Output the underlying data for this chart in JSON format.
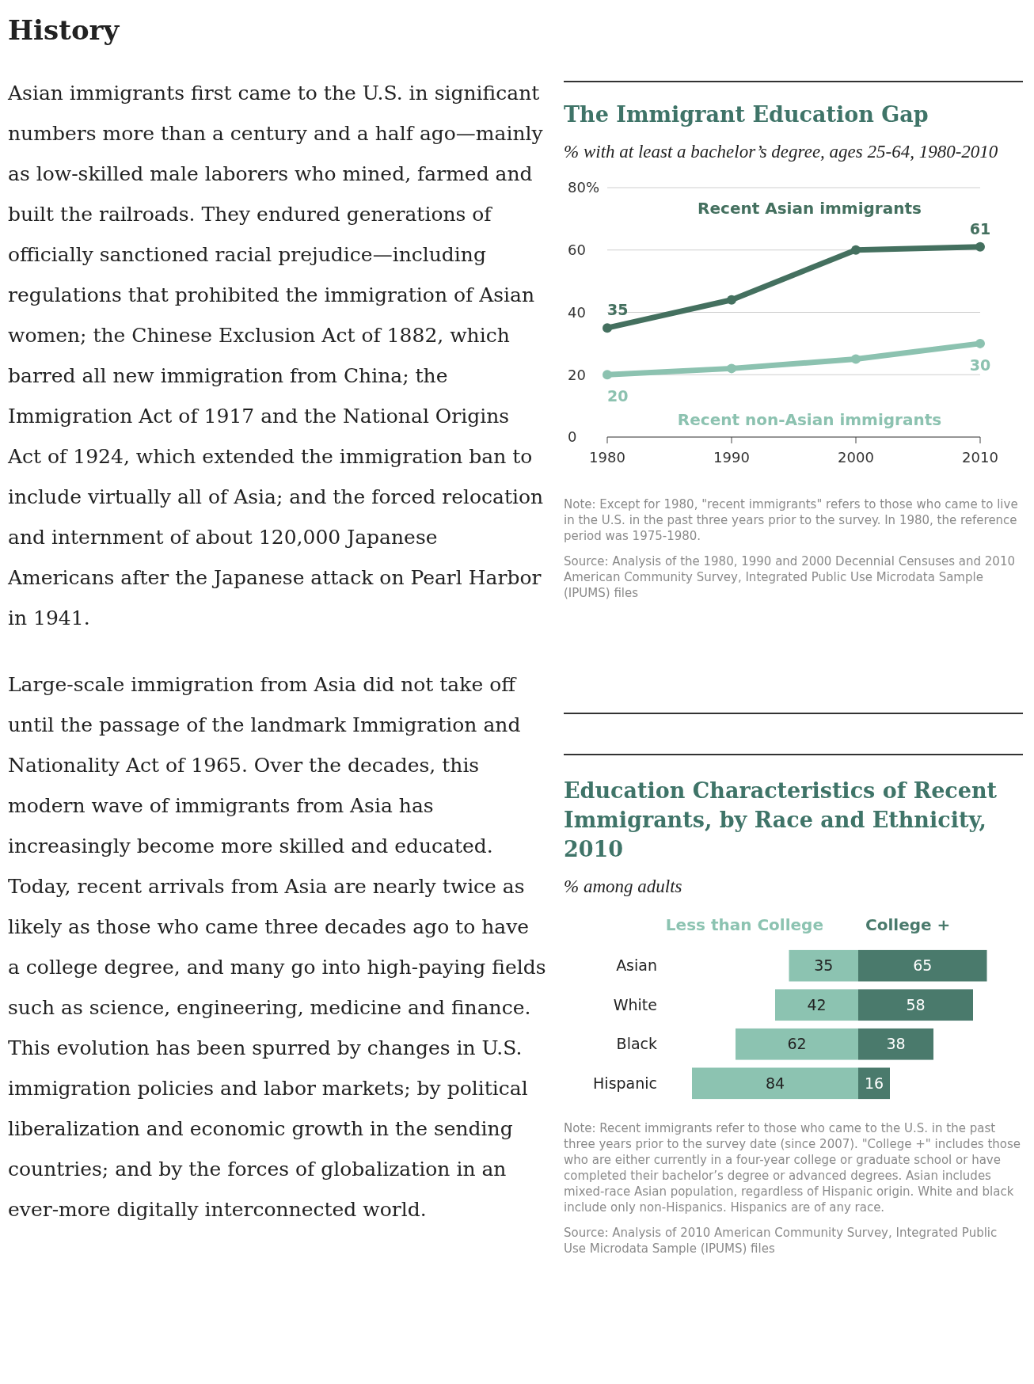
{
  "chart_data": [
    {
      "type": "other",
      "title": "History",
      "annotations": [
        "Asian immigrants first came to the U.S. in significant numbers more than a century and a half ago—mainly as low-skilled male laborers who mined, farmed and built the railroads. They endured generations of officially sanctioned racial prejudice—including regulations that prohibited the immigration of Asian women; the Chinese Exclusion Act of 1882, which barred all new immigration from China; the Immigration Act of 1917 and the National Origins Act of 1924, which extended the immigration ban to include virtually all of Asia; and the forced relocation and internment of about 120,000 Japanese Americans after the Japanese attack on Pearl Harbor in 1941.",
        "Large-scale immigration from Asia did not take off until the passage of the landmark Immigration and Nationality Act of 1965. Over the decades, this modern wave of immigrants from Asia has increasingly become more skilled and educated. Today, recent arrivals from Asia are nearly twice as likely as those who came three decades ago to have a college degree, and many go into high-paying fields such as science, engineering, medicine and finance. This evolution has been spurred by changes in U.S. immigration policies and labor markets; by political liberalization and economic growth in the sending countries; and by the forces of globalization in an ever-more digitally interconnected world."
      ]
    },
    {
      "type": "line",
      "title": "The Immigrant Education Gap",
      "subtitle": "% with at least a bachelor’s degree, ages 25-64, 1980-2010",
      "x": [
        1980,
        1990,
        2000,
        2010
      ],
      "xlim": [
        1980,
        2010
      ],
      "xticks": [
        1980,
        1990,
        2000,
        2010
      ],
      "ylim": [
        0,
        80
      ],
      "yticks": [
        0,
        20,
        40,
        60,
        {
          "value": 80,
          "label": "80%"
        }
      ],
      "grid": "y",
      "marker": "circle",
      "series": [
        {
          "name": "Recent Asian immigrants",
          "color": "#44705f",
          "values": [
            35,
            44,
            60,
            61
          ],
          "value_labels": [
            "35",
            null,
            null,
            "61"
          ]
        },
        {
          "name": "Recent non-Asian immigrants",
          "color": "#8cc2b0",
          "values": [
            20,
            22,
            25,
            30
          ],
          "value_labels": [
            "20",
            null,
            null,
            "30"
          ]
        }
      ],
      "annotations": [
        "Note: Except for 1980, \"recent immigrants\" refers to those who came to live in the U.S. in the past three years prior to the survey. In 1980, the reference period was 1975-1980.",
        "Source: Analysis of the 1980, 1990 and 2000 Decennial Censuses and 2010 American Community Survey, Integrated Public Use Microdata Sample (IPUMS) files"
      ]
    },
    {
      "type": "bar",
      "orientation": "horizontal",
      "title": "Education Characteristics of Recent Immigrants, by Race and Ethnicity, 2010",
      "subtitle": "% among adults",
      "categories": [
        "Asian",
        "White",
        "Black",
        "Hispanic"
      ],
      "data_labels": true,
      "tick_labels": "y",
      "series": [
        {
          "name": "Less than College",
          "color": "#8cc3b1",
          "values": [
            35,
            42,
            62,
            84
          ]
        }
      ]
    },
    {
      "type": "bar",
      "orientation": "horizontal",
      "categories": [
        null,
        null,
        null,
        null
      ],
      "data_labels": true,
      "series": [
        {
          "name": "College +",
          "color": "#4a7a6c",
          "values": [
            65,
            58,
            38,
            16
          ]
        }
      ],
      "annotations": [
        "Note: Recent immigrants refer to those who came to the U.S. in the past three years prior to the survey date (since 2007). \"College +\" includes those who are either currently in a four-year college or graduate school or have completed their bachelor’s degree or advanced degrees. Asian includes mixed-race Asian population, regardless of Hispanic origin. White and black include only non-Hispanics. Hispanics are of any race.",
        "Source: Analysis of 2010 American Community Survey, Integrated Public Use Microdata Sample (IPUMS) files"
      ]
    }
  ]
}
